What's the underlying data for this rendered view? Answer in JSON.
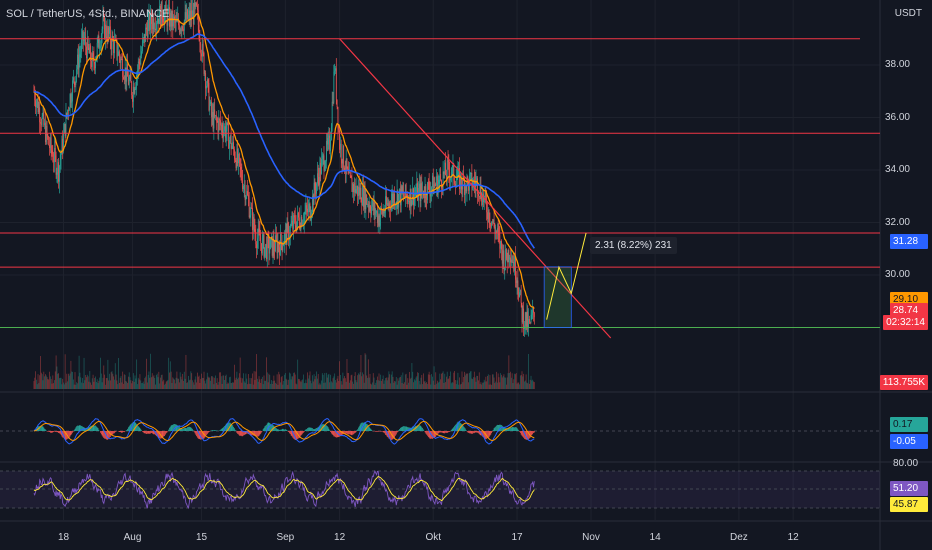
{
  "header": {
    "symbol": "SOL / TetherUS, 4Std., BINANCE",
    "currency": "USDT"
  },
  "chart_data": {
    "type": "candlestick",
    "y_ticks": [
      "38.00",
      "36.00",
      "34.00",
      "32.00",
      "30.00"
    ],
    "ylim": [
      27.2,
      39.9
    ],
    "x_ticks": [
      {
        "label": "18",
        "day": 18
      },
      {
        "label": "Aug",
        "day": 32
      },
      {
        "label": "15",
        "day": 46
      },
      {
        "label": "Sep",
        "day": 63
      },
      {
        "label": "12",
        "day": 74
      },
      {
        "label": "Okt",
        "day": 93
      },
      {
        "label": "17",
        "day": 110
      },
      {
        "label": "Nov",
        "day": 125
      },
      {
        "label": "14",
        "day": 138
      },
      {
        "label": "Dez",
        "day": 155
      },
      {
        "label": "12",
        "day": 166
      }
    ],
    "close_anchors": [
      [
        12,
        37.0
      ],
      [
        15,
        35.0
      ],
      [
        17,
        34.0
      ],
      [
        19,
        36.5
      ],
      [
        22,
        39.0
      ],
      [
        24,
        38.0
      ],
      [
        26,
        39.5
      ],
      [
        29,
        38.5
      ],
      [
        32,
        37.0
      ],
      [
        35,
        39.5
      ],
      [
        38,
        40.0
      ],
      [
        41,
        39.5
      ],
      [
        45,
        40.0
      ],
      [
        48,
        36.0
      ],
      [
        51,
        35.5
      ],
      [
        53,
        34.5
      ],
      [
        55,
        33.2
      ],
      [
        57,
        31.5
      ],
      [
        59,
        31.0
      ],
      [
        62,
        31.2
      ],
      [
        65,
        32.0
      ],
      [
        68,
        32.5
      ],
      [
        70,
        34.0
      ],
      [
        72,
        35.0
      ],
      [
        73,
        38.0
      ],
      [
        74,
        35.0
      ],
      [
        76,
        33.5
      ],
      [
        79,
        33.0
      ],
      [
        82,
        32.2
      ],
      [
        85,
        33.0
      ],
      [
        88,
        33.0
      ],
      [
        91,
        33.2
      ],
      [
        94,
        33.5
      ],
      [
        96,
        34.0
      ],
      [
        99,
        33.5
      ],
      [
        102,
        33.5
      ],
      [
        104,
        32.5
      ],
      [
        106,
        31.5
      ],
      [
        107.5,
        30.5
      ],
      [
        108.5,
        31.0
      ],
      [
        110,
        30.0
      ],
      [
        111,
        28.5
      ],
      [
        112.5,
        28.0
      ],
      [
        113.6,
        28.74
      ]
    ],
    "horizontal_levels": [
      {
        "price": 39.0,
        "color": "#f23645"
      },
      {
        "price": 35.4,
        "color": "#f23645"
      },
      {
        "price": 31.6,
        "color": "#f23645"
      },
      {
        "price": 30.3,
        "color": "#f23645"
      },
      {
        "price": 28.0,
        "color": "#4caf50"
      }
    ],
    "trendline": {
      "from": {
        "day": 74,
        "price": 39.0
      },
      "to": {
        "day": 129,
        "price": 27.6
      },
      "color": "#f23645"
    },
    "projection": {
      "box_start_day": 115.5,
      "box_end_day": 121,
      "entry": 28.0,
      "target": 30.31,
      "label": "2.31 (8.22%) 231",
      "path": [
        {
          "day": 116,
          "price": 28.3
        },
        {
          "day": 118.5,
          "price": 30.3
        },
        {
          "day": 121,
          "price": 29.3
        },
        {
          "day": 124,
          "price": 31.6
        }
      ]
    },
    "price_tags": [
      {
        "text": "31.28",
        "price": 31.28,
        "bg": "#2962ff",
        "fg": "#ffffff"
      },
      {
        "text": "29.10",
        "price": 29.1,
        "bg": "#ff9800",
        "fg": "#131722"
      },
      {
        "text": "28.74",
        "price": 28.65,
        "bg": "#f23645",
        "fg": "#ffffff"
      },
      {
        "text": "02:32:14",
        "price": 28.2,
        "bg": "#f23645",
        "fg": "#ffffff"
      }
    ],
    "volume": {
      "tag": "113.755K"
    },
    "macd": {
      "values": [
        "0.17",
        "-0.05"
      ],
      "colors": [
        "#26a69a",
        "#2962ff"
      ]
    },
    "rsi": {
      "upper": "80.00",
      "values": [
        "51.20",
        "45.87"
      ],
      "colors": [
        "#7e57c2",
        "#ffeb3b"
      ]
    },
    "colors": {
      "up": "#26a69a",
      "down": "#ef5350",
      "ema_fast": "#ff9800",
      "ema_slow": "#2962ff"
    }
  }
}
